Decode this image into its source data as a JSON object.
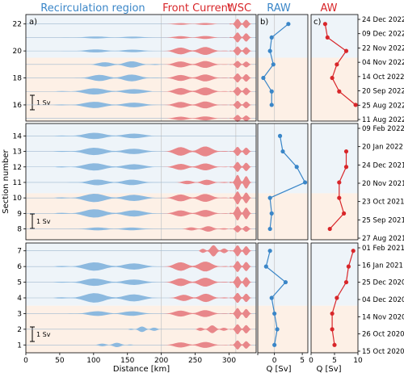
{
  "headers": {
    "recirc": "Recirculation region",
    "front": "Front Current",
    "wsc": "WSC",
    "raw": "RAW",
    "aw": "AW"
  },
  "colors": {
    "blue": "#3a86c8",
    "blue_fill": "#8cb9df",
    "red": "#d8262a",
    "red_fill": "#e8878a",
    "bg_blue": "#eef4f9",
    "bg_orange": "#fdf0e6",
    "grid": "#c9c9c9"
  },
  "chart_data": [
    {
      "type": "area",
      "panel": "section-plot",
      "panel_label": "a)",
      "xlabel": "Distance [km]",
      "ylabel": "Section number",
      "xlim": [
        0,
        340
      ],
      "xticks": [
        "0",
        "50",
        "100",
        "150",
        "200",
        "250",
        "300"
      ],
      "yticks": [
        1,
        2,
        3,
        4,
        5,
        6,
        7,
        8,
        9,
        10,
        11,
        12,
        13,
        14,
        16,
        18,
        20,
        22
      ],
      "scale_bar": "1 Sv",
      "region_boundaries_km": [
        200,
        310
      ],
      "sections": [
        {
          "n": 1,
          "blue": [
            [
              100,
              160,
              0.2
            ]
          ],
          "red": [
            [
              200,
              300,
              0.3
            ],
            [
              300,
              335,
              0.45
            ]
          ]
        },
        {
          "n": 2,
          "blue": [
            [
              150,
              200,
              0.25
            ]
          ],
          "red": [
            [
              250,
              300,
              0.35
            ],
            [
              300,
              335,
              0.5
            ]
          ]
        },
        {
          "n": 3,
          "blue": [
            [
              60,
              200,
              0.25
            ]
          ],
          "red": [
            [
              200,
              300,
              0.35
            ],
            [
              300,
              335,
              0.55
            ]
          ]
        },
        {
          "n": 4,
          "blue": [
            [
              40,
              200,
              0.45
            ]
          ],
          "red": [
            [
              210,
              300,
              0.4
            ],
            [
              300,
              335,
              0.5
            ]
          ]
        },
        {
          "n": 5,
          "blue": [
            [
              40,
              200,
              0.35
            ]
          ],
          "red": [
            [
              200,
              300,
              0.45
            ],
            [
              300,
              335,
              0.6
            ]
          ]
        },
        {
          "n": 6,
          "blue": [
            [
              40,
              200,
              0.4
            ]
          ],
          "red": [
            [
              200,
              300,
              0.5
            ],
            [
              300,
              335,
              0.55
            ]
          ]
        },
        {
          "n": 7,
          "blue": [],
          "red": [
            [
              255,
              300,
              0.5
            ],
            [
              300,
              335,
              0.55
            ]
          ]
        },
        {
          "n": 8,
          "blue": [
            [
              60,
              200,
              0.15
            ]
          ],
          "red": [
            [
              230,
              300,
              0.25
            ],
            [
              300,
              335,
              0.35
            ]
          ]
        },
        {
          "n": 9,
          "blue": [
            [
              40,
              200,
              0.4
            ]
          ],
          "red": [
            [
              200,
              300,
              0.35
            ],
            [
              300,
              335,
              0.7
            ]
          ]
        },
        {
          "n": 10,
          "blue": [
            [
              40,
              200,
              0.4
            ]
          ],
          "red": [
            [
              200,
              300,
              0.4
            ],
            [
              300,
              335,
              0.65
            ]
          ]
        },
        {
          "n": 11,
          "blue": [
            [
              60,
              200,
              0.3
            ]
          ],
          "red": [
            [
              220,
              300,
              0.25
            ],
            [
              300,
              335,
              0.75
            ]
          ]
        },
        {
          "n": 12,
          "blue": [
            [
              40,
              200,
              0.35
            ]
          ],
          "red": [
            [
              200,
              300,
              0.35
            ],
            [
              300,
              335,
              0.5
            ]
          ]
        },
        {
          "n": 13,
          "blue": [
            [
              40,
              200,
              0.35
            ]
          ],
          "red": [
            [
              200,
              300,
              0.5
            ],
            [
              300,
              335,
              0.45
            ]
          ]
        },
        {
          "n": 14,
          "blue": [
            [
              40,
              200,
              0.3
            ]
          ],
          "red": []
        },
        {
          "n": 15,
          "blue": [],
          "red": [
            [
              200,
              300,
              0.2
            ],
            [
              300,
              335,
              0.35
            ]
          ]
        },
        {
          "n": 16,
          "blue": [
            [
              40,
              200,
              0.3
            ]
          ],
          "red": [
            [
              200,
              300,
              0.35
            ],
            [
              300,
              335,
              0.4
            ]
          ]
        },
        {
          "n": 17,
          "blue": [
            [
              40,
              200,
              0.3
            ]
          ],
          "red": [
            [
              200,
              300,
              0.4
            ],
            [
              300,
              335,
              0.45
            ]
          ]
        },
        {
          "n": 18,
          "blue": [
            [
              70,
              200,
              0.35
            ]
          ],
          "red": [
            [
              200,
              300,
              0.35
            ],
            [
              300,
              335,
              0.45
            ]
          ]
        },
        {
          "n": 19,
          "blue": [
            [
              90,
              200,
              0.3
            ]
          ],
          "red": [
            [
              200,
              300,
              0.35
            ],
            [
              300,
              335,
              0.35
            ]
          ]
        },
        {
          "n": 20,
          "blue": [
            [
              50,
              200,
              0.15
            ]
          ],
          "red": [
            [
              200,
              300,
              0.4
            ],
            [
              300,
              335,
              0.45
            ]
          ]
        },
        {
          "n": 21,
          "blue": [
            [
              50,
              200,
              0.1
            ]
          ],
          "red": [
            [
              200,
              300,
              0.15
            ],
            [
              300,
              335,
              0.5
            ]
          ]
        },
        {
          "n": 22,
          "blue": [],
          "red": [
            [
              200,
              300,
              0.1
            ],
            [
              300,
              335,
              0.5
            ]
          ]
        }
      ]
    },
    {
      "type": "line",
      "panel": "raw",
      "panel_label": "b)",
      "title": "RAW",
      "xlabel": "Q [Sv]",
      "xlim": [
        -3,
        6
      ],
      "xticks": [
        -3,
        0,
        5
      ],
      "xticklabels": [
        "",
        "0",
        "5"
      ],
      "series": [
        {
          "group": "top",
          "sections": [
            22,
            21,
            20,
            19,
            18,
            17,
            16
          ],
          "values": [
            2.5,
            -0.5,
            -0.8,
            -0.2,
            -2.0,
            -0.5,
            -0.5
          ]
        },
        {
          "group": "mid",
          "sections": [
            14,
            13,
            12,
            11,
            10,
            9,
            8
          ],
          "values": [
            1.0,
            1.5,
            4.0,
            5.5,
            -0.8,
            -0.5,
            -0.8
          ]
        },
        {
          "group": "bottom",
          "sections": [
            7,
            6,
            5,
            4,
            3,
            2,
            1
          ],
          "values": [
            -0.8,
            -1.5,
            2.0,
            -0.5,
            0.0,
            0.5,
            0.0
          ]
        }
      ]
    },
    {
      "type": "line",
      "panel": "aw",
      "panel_label": "c)",
      "title": "AW",
      "xlabel": "Q [Sv]",
      "xlim": [
        0,
        10
      ],
      "xticks": [
        0,
        5,
        10
      ],
      "xticklabels": [
        "0",
        "5",
        "10"
      ],
      "series": [
        {
          "group": "top",
          "sections": [
            22,
            21,
            20,
            19,
            18,
            17,
            16
          ],
          "values": [
            3.0,
            3.5,
            7.5,
            5.5,
            4.5,
            6.0,
            9.5
          ]
        },
        {
          "group": "mid",
          "sections": [
            13,
            12,
            11,
            10,
            9,
            8
          ],
          "values": [
            7.5,
            7.5,
            6.0,
            6.0,
            7.0,
            4.0
          ]
        },
        {
          "group": "bottom",
          "sections": [
            7,
            6,
            5,
            4,
            3,
            2,
            1
          ],
          "values": [
            9.0,
            8.0,
            7.5,
            5.5,
            4.5,
            4.5,
            5.0
          ]
        }
      ]
    }
  ],
  "dates": {
    "top": [
      "24 Dec 2022",
      "09 Dec 2022",
      "22 Nov 2022",
      "04 Nov 2022",
      "14 Oct 2022",
      "20 Sep 2022",
      "25 Aug 2022",
      "11 Aug 2022"
    ],
    "mid": [
      "09 Feb 2022",
      "20 Jan 2022",
      "24 Dec 2021",
      "20 Nov 2021",
      "23 Oct 2021",
      "25 Sep 2021",
      "27 Aug 2021"
    ],
    "bottom": [
      "01 Feb 2021",
      "16 Jan 2021",
      "25 Dec 2020",
      "04 Dec 2020",
      "14 Nov 2020",
      "26 Oct 2020",
      "15 Oct 2020"
    ]
  }
}
